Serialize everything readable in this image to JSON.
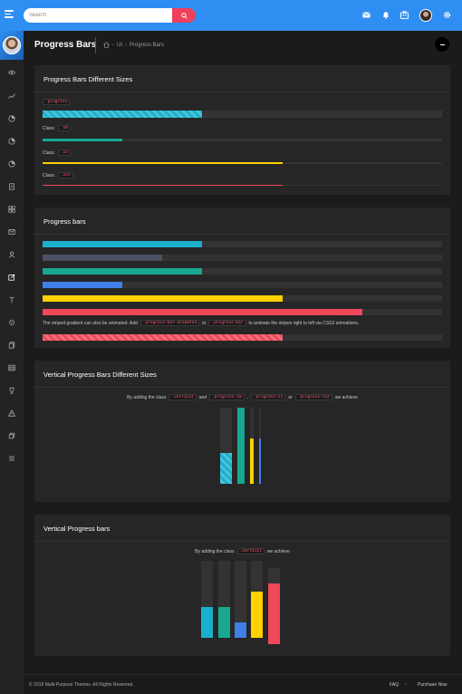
{
  "search": {
    "placeholder": "Search"
  },
  "header": {
    "title": "Progress Bars",
    "breadcrumb": [
      "UI",
      "Progress Bars"
    ]
  },
  "colors": {
    "blue": "#2f8ef2",
    "cyan": "#1ab0cc",
    "slate": "#4b5163",
    "teal": "#17a88f",
    "royal": "#3f7fe8",
    "yellow": "#ffd100",
    "red": "#ef4858",
    "track": "#333333"
  },
  "cards": {
    "sizes": {
      "title": "Progress Bars Different Sizes",
      "base_class": ".progress",
      "class_label": "Class:",
      "bars": [
        {
          "cls": ".sm",
          "value": 20,
          "color": "teal"
        },
        {
          "cls": ".xs",
          "value": 60,
          "color": "yellow"
        },
        {
          "cls": ".xxs",
          "value": 60,
          "color": "red"
        }
      ],
      "base_value": 40
    },
    "bars": {
      "title": "Progress bars",
      "values": [
        {
          "value": 40,
          "color": "cyan"
        },
        {
          "value": 30,
          "color": "slate"
        },
        {
          "value": 40,
          "color": "teal"
        },
        {
          "value": 20,
          "color": "royal"
        },
        {
          "value": 60,
          "color": "yellow"
        },
        {
          "value": 80,
          "color": "red"
        }
      ],
      "note": {
        "prefix": "The striped gradient can also be animated. Add",
        "code1": ".progress-bar-animated",
        "mid": "to",
        "code2": ".progress-bar",
        "suffix": "to animate the stripes right to left via CSS3 animations."
      },
      "animated_value": 60
    },
    "vsizes": {
      "title": "Vertical Progress Bars Different Sizes",
      "note": {
        "prefix": "By adding the class",
        "c1": ".vertical",
        "and": "and",
        "c2": ".progress-sm",
        "c3": ".progress-xs",
        "or": "or",
        "c4": ".progress-xxs",
        "suffix": "we achieve"
      },
      "values": [
        40,
        100,
        60,
        60
      ]
    },
    "vbars": {
      "title": "Vertical Progress bars",
      "note": {
        "prefix": "By adding the class",
        "c1": ".vertical",
        "suffix": "we achieve"
      },
      "values": [
        40,
        40,
        20,
        60,
        80
      ]
    }
  },
  "footer": {
    "copyright": "© 2018 Multi-Purpose Themes. All Rights Reserved.",
    "faq": "FAQ",
    "purchase": "Purchase Now"
  }
}
